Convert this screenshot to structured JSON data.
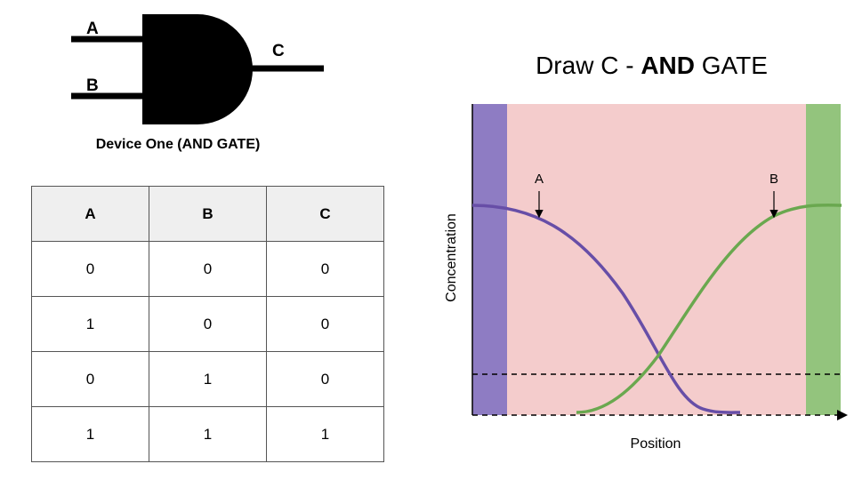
{
  "gate": {
    "input_a": "A",
    "input_b": "B",
    "output": "C",
    "caption": "Device One (AND GATE)"
  },
  "table": {
    "headers": [
      "A",
      "B",
      "C"
    ],
    "rows": [
      [
        "0",
        "0",
        "0"
      ],
      [
        "1",
        "0",
        "0"
      ],
      [
        "0",
        "1",
        "0"
      ],
      [
        "1",
        "1",
        "1"
      ]
    ]
  },
  "title": {
    "prefix": "Draw C - ",
    "bold": "AND",
    "suffix": " GATE"
  },
  "plot": {
    "xlabel": "Position",
    "ylabel": "Concentration",
    "label_a": "A",
    "label_b": "B",
    "colors": {
      "background": "#f4cccc",
      "left_band": "#8e7cc3",
      "right_band": "#93c47d",
      "curve_a": "#674ea7",
      "curve_b": "#6aa84f"
    }
  }
}
